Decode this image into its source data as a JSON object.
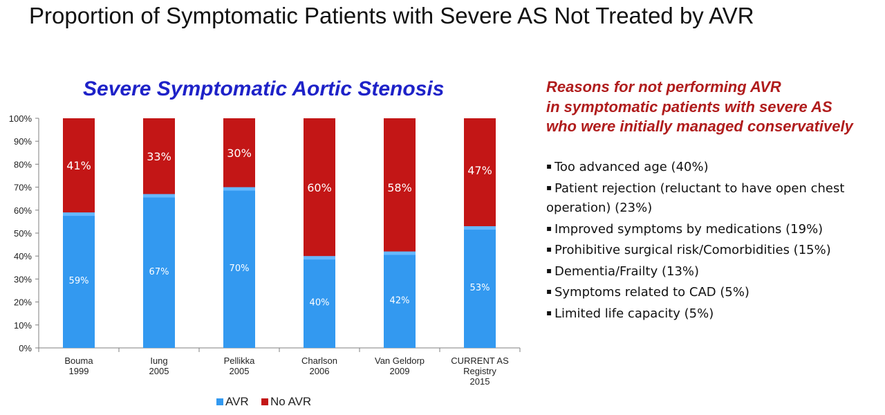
{
  "page_title": "Proportion of Symptomatic Patients with Severe AS Not Treated by AVR",
  "colors": {
    "avr": "#3399f0",
    "avr_top": "#66b8ff",
    "no_avr": "#c31616",
    "title": "#111111",
    "subtitle": "#1e22c8",
    "reasons_heading": "#b01c1c"
  },
  "chart_data": {
    "type": "bar",
    "stacked": true,
    "title": "Severe Symptomatic Aortic Stenosis",
    "categories": [
      [
        "Bouma",
        "1999"
      ],
      [
        "Iung",
        "2005"
      ],
      [
        "Pellikka",
        "2005"
      ],
      [
        "Charlson",
        "2006"
      ],
      [
        "Van Geldorp",
        "2009"
      ],
      [
        "CURRENT AS",
        "Registry",
        "2015"
      ]
    ],
    "series": [
      {
        "name": "AVR",
        "values": [
          59,
          67,
          70,
          40,
          42,
          53
        ],
        "labels": [
          "59%",
          "67%",
          "70%",
          "40%",
          "42%",
          "53%"
        ]
      },
      {
        "name": "No AVR",
        "values": [
          41,
          33,
          30,
          60,
          58,
          47
        ],
        "labels": [
          "41%",
          "33%",
          "30%",
          "60%",
          "58%",
          "47%"
        ]
      }
    ],
    "yticks": [
      "0%",
      "10%",
      "20%",
      "30%",
      "40%",
      "50%",
      "60%",
      "70%",
      "80%",
      "90%",
      "100%"
    ],
    "ylim": [
      0,
      100
    ],
    "grid": false,
    "legend_position": "bottom"
  },
  "reasons": {
    "heading_lines": [
      "Reasons for not performing AVR",
      "in symptomatic patients with severe AS",
      "who were initially managed conservatively"
    ],
    "items": [
      "Too advanced age (40%)",
      "Patient rejection (reluctant to have open chest operation) (23%)",
      "Improved symptoms by medications (19%)",
      "Prohibitive surgical risk/Comorbidities (15%)",
      "Dementia/Frailty (13%)",
      "Symptoms related to CAD (5%)",
      "Limited life capacity (5%)"
    ]
  }
}
